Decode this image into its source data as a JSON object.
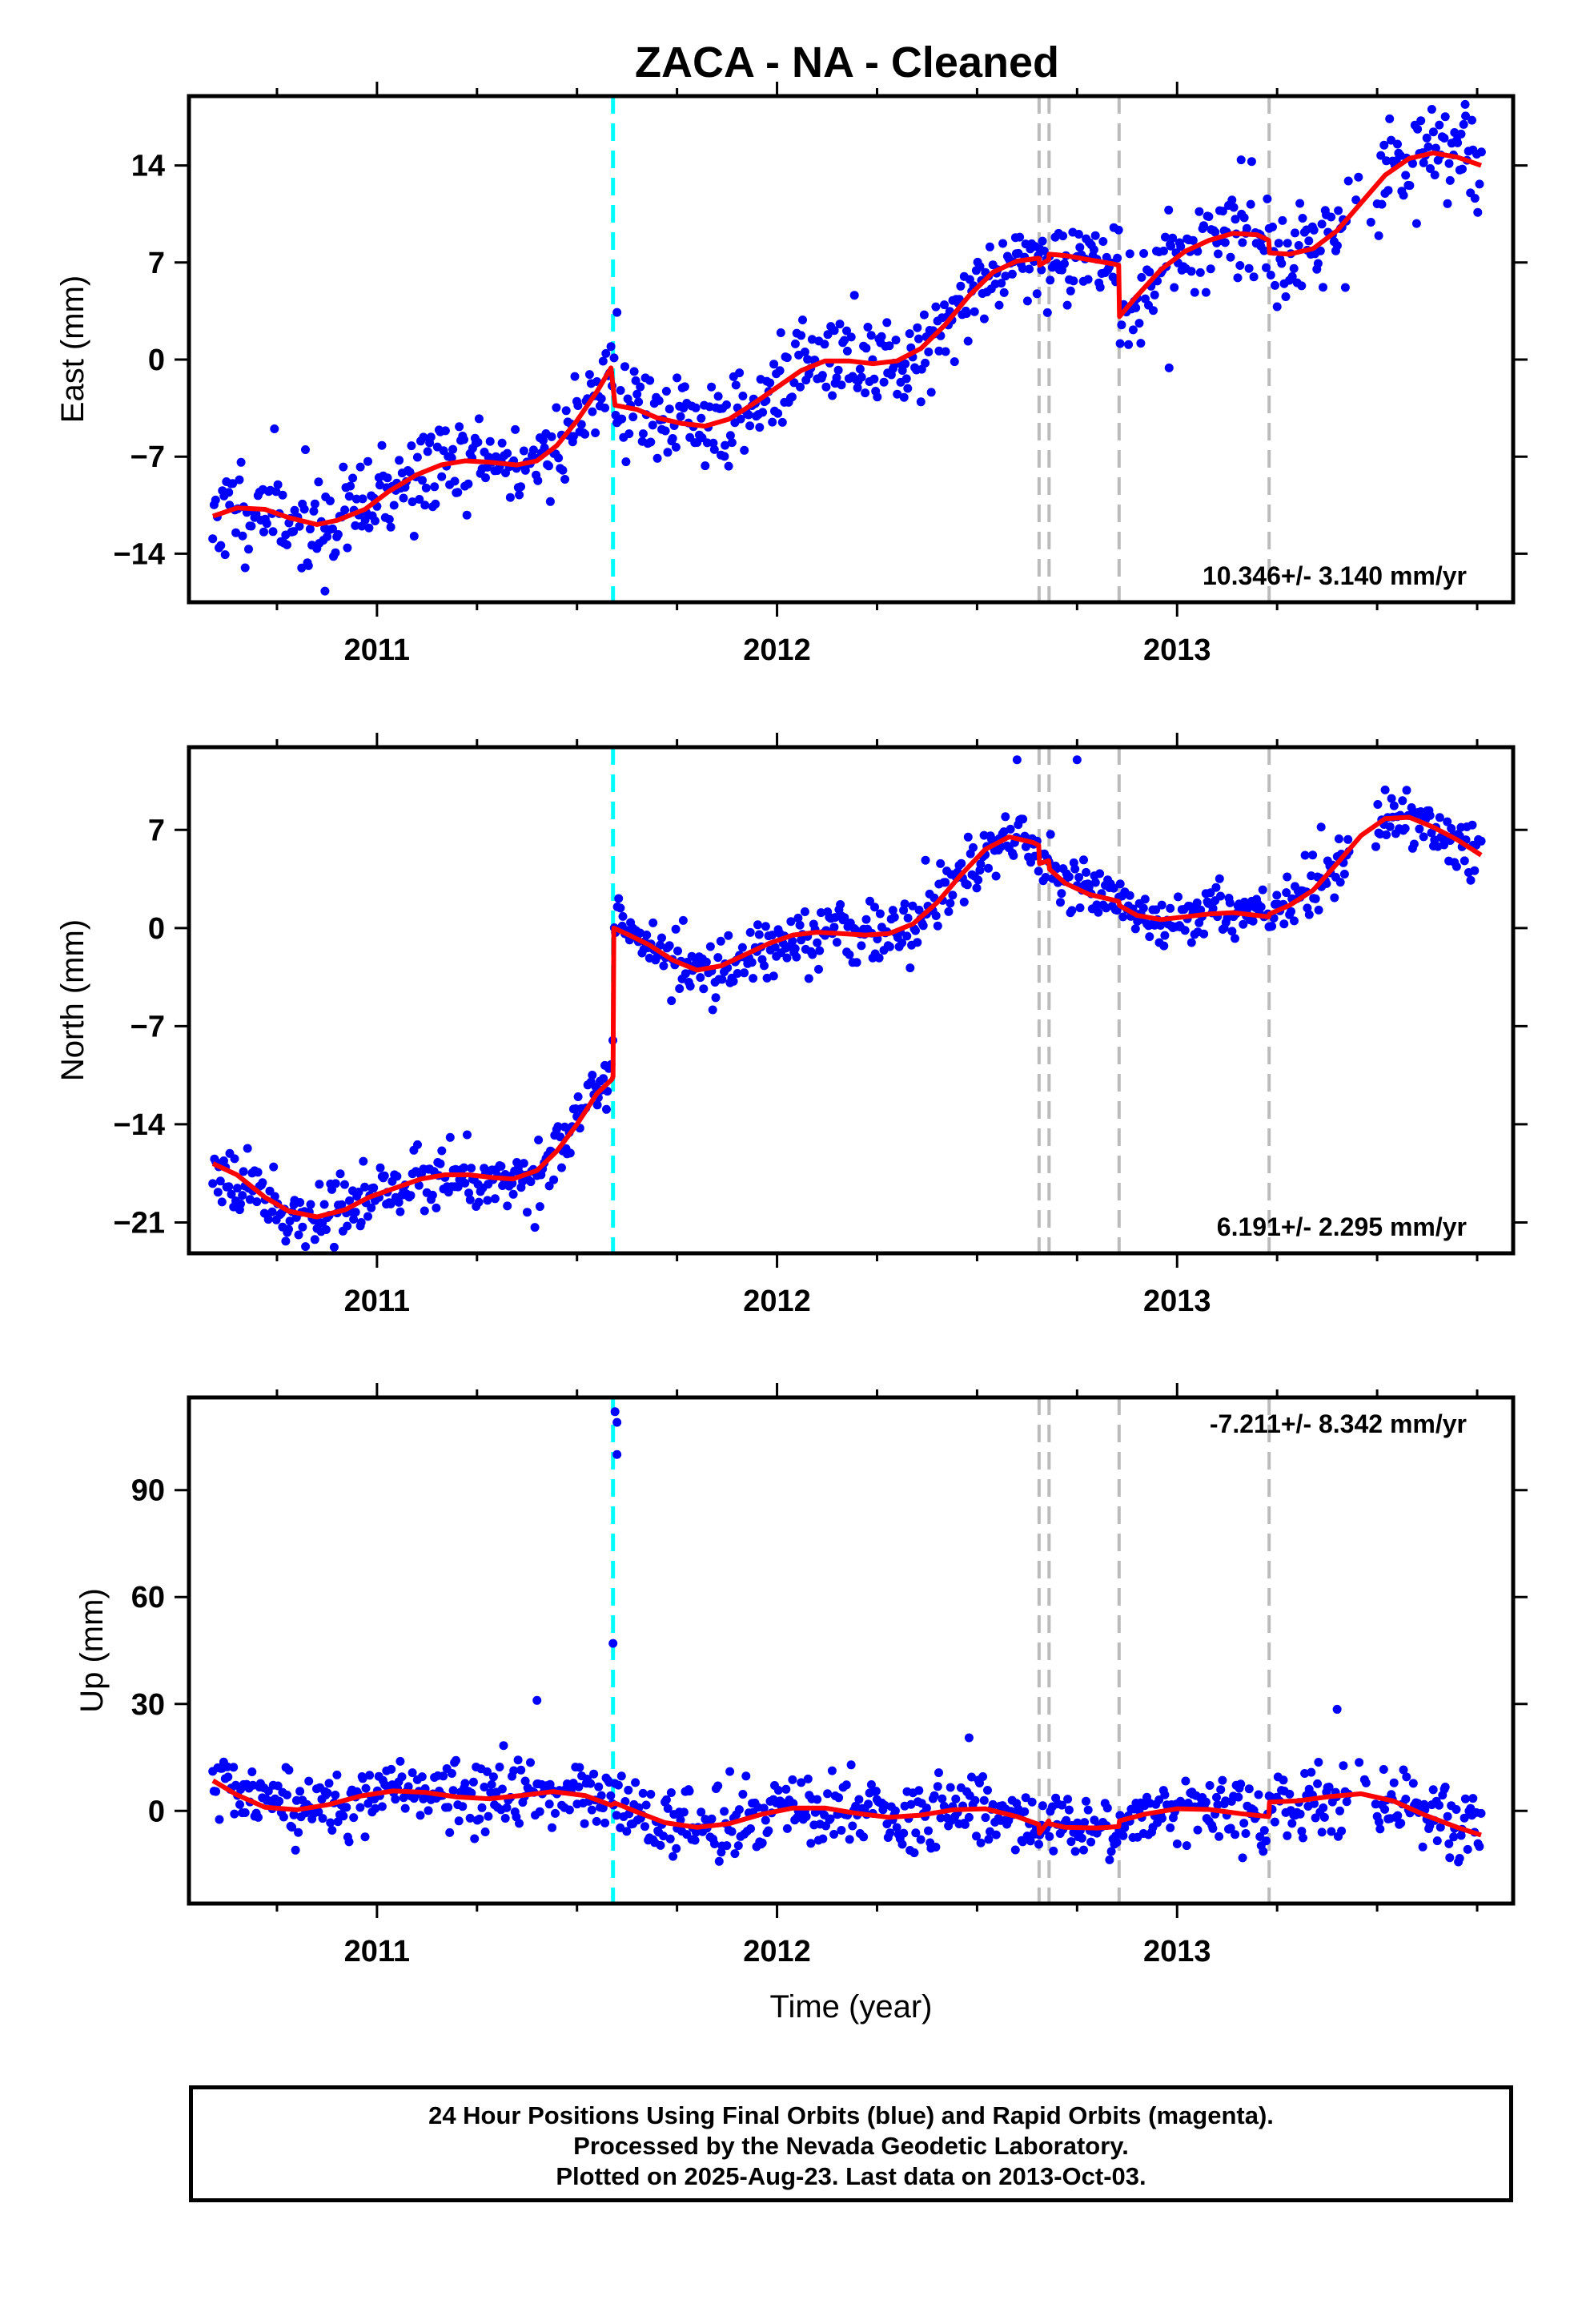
{
  "title": "ZACA  - NA - Cleaned",
  "footer": {
    "line1": "24 Hour Positions Using Final Orbits (blue) and Rapid Orbits (magenta).",
    "line2": "Processed by the Nevada Geodetic Laboratory.",
    "line3": "Plotted on 2025-Aug-23. Last data on 2013-Oct-03."
  },
  "colors": {
    "data": "#0000ff",
    "model": "#ff0000",
    "offset_equipment": "#00ffff",
    "offset_other": "#bbbbbb"
  },
  "chart_data": [
    {
      "type": "scatter",
      "component": "east",
      "ylabel": "East (mm)",
      "xlim": [
        2010.53,
        2013.84
      ],
      "ylim": [
        -17.5,
        19
      ],
      "x_ticks": [
        2011,
        2012,
        2013
      ],
      "y_ticks": [
        -14,
        -7,
        0,
        7,
        14
      ],
      "rate_label": "10.346+/- 3.140 mm/yr",
      "offsets": [
        2011.59,
        2012.655,
        2012.68,
        2012.855,
        2013.23
      ],
      "offset_colors": [
        "#00ffff",
        "#bbbbbb",
        "#bbbbbb",
        "#bbbbbb",
        "#bbbbbb"
      ],
      "model": [
        [
          2010.59,
          -11.3
        ],
        [
          2010.65,
          -10.7
        ],
        [
          2010.72,
          -10.8
        ],
        [
          2010.78,
          -11.4
        ],
        [
          2010.85,
          -11.9
        ],
        [
          2010.9,
          -11.6
        ],
        [
          2010.97,
          -10.8
        ],
        [
          2011.03,
          -9.5
        ],
        [
          2011.1,
          -8.3
        ],
        [
          2011.16,
          -7.6
        ],
        [
          2011.22,
          -7.3
        ],
        [
          2011.28,
          -7.4
        ],
        [
          2011.35,
          -7.6
        ],
        [
          2011.4,
          -7.3
        ],
        [
          2011.45,
          -6.2
        ],
        [
          2011.5,
          -4.4
        ],
        [
          2011.55,
          -2.3
        ],
        [
          2011.585,
          -0.6
        ],
        [
          2011.595,
          -3.3
        ],
        [
          2011.65,
          -3.6
        ],
        [
          2011.7,
          -4.2
        ],
        [
          2011.76,
          -4.6
        ],
        [
          2011.82,
          -4.8
        ],
        [
          2011.88,
          -4.3
        ],
        [
          2011.94,
          -3.2
        ],
        [
          2012.0,
          -2.0
        ],
        [
          2012.06,
          -0.8
        ],
        [
          2012.12,
          -0.1
        ],
        [
          2012.18,
          -0.1
        ],
        [
          2012.24,
          -0.3
        ],
        [
          2012.3,
          -0.1
        ],
        [
          2012.36,
          0.8
        ],
        [
          2012.42,
          2.5
        ],
        [
          2012.48,
          4.6
        ],
        [
          2012.54,
          6.3
        ],
        [
          2012.6,
          7.1
        ],
        [
          2012.65,
          7.3
        ],
        [
          2012.655,
          7.3
        ],
        [
          2012.656,
          6.8
        ],
        [
          2012.679,
          7.2
        ],
        [
          2012.68,
          7.6
        ],
        [
          2012.72,
          7.5
        ],
        [
          2012.78,
          7.2
        ],
        [
          2012.84,
          6.9
        ],
        [
          2012.854,
          6.8
        ],
        [
          2012.856,
          3.1
        ],
        [
          2012.9,
          4.6
        ],
        [
          2012.96,
          6.5
        ],
        [
          2013.02,
          7.8
        ],
        [
          2013.08,
          8.6
        ],
        [
          2013.14,
          9.1
        ],
        [
          2013.2,
          9.0
        ],
        [
          2013.229,
          8.6
        ],
        [
          2013.231,
          7.7
        ],
        [
          2013.28,
          7.6
        ],
        [
          2013.34,
          8.0
        ],
        [
          2013.4,
          9.3
        ],
        [
          2013.46,
          11.3
        ],
        [
          2013.52,
          13.3
        ],
        [
          2013.58,
          14.5
        ],
        [
          2013.64,
          14.9
        ],
        [
          2013.7,
          14.6
        ],
        [
          2013.76,
          14.0
        ]
      ],
      "n_points": 820,
      "seed": 11,
      "noise_mm": 1.7,
      "outliers": [
        [
          2011.6,
          3.4
        ],
        [
          2010.87,
          -16.7
        ],
        [
          2012.98,
          -0.6
        ],
        [
          2013.16,
          14.4
        ],
        [
          2013.72,
          18.4
        ]
      ]
    },
    {
      "type": "scatter",
      "component": "north",
      "ylabel": "North (mm)",
      "xlim": [
        2010.53,
        2013.84
      ],
      "ylim": [
        -23.2,
        12.9
      ],
      "x_ticks": [
        2011,
        2012,
        2013
      ],
      "y_ticks": [
        -21,
        -14,
        -7,
        0,
        7
      ],
      "rate_label": "6.191+/- 2.295 mm/yr",
      "offsets": [
        2011.59,
        2012.655,
        2012.68,
        2012.855,
        2013.23
      ],
      "offset_colors": [
        "#00ffff",
        "#bbbbbb",
        "#bbbbbb",
        "#bbbbbb",
        "#bbbbbb"
      ],
      "model": [
        [
          2010.59,
          -16.8
        ],
        [
          2010.65,
          -17.6
        ],
        [
          2010.72,
          -19.2
        ],
        [
          2010.78,
          -20.2
        ],
        [
          2010.85,
          -20.6
        ],
        [
          2010.92,
          -20.1
        ],
        [
          2010.98,
          -19.2
        ],
        [
          2011.05,
          -18.5
        ],
        [
          2011.11,
          -17.9
        ],
        [
          2011.17,
          -17.6
        ],
        [
          2011.23,
          -17.6
        ],
        [
          2011.29,
          -17.8
        ],
        [
          2011.34,
          -17.9
        ],
        [
          2011.4,
          -17.3
        ],
        [
          2011.45,
          -15.9
        ],
        [
          2011.5,
          -14.0
        ],
        [
          2011.55,
          -11.8
        ],
        [
          2011.587,
          -10.8
        ],
        [
          2011.59,
          -10.6
        ],
        [
          2011.592,
          0.0
        ],
        [
          2011.63,
          -0.5
        ],
        [
          2011.68,
          -1.2
        ],
        [
          2011.74,
          -2.3
        ],
        [
          2011.8,
          -3.0
        ],
        [
          2011.86,
          -2.7
        ],
        [
          2011.92,
          -1.9
        ],
        [
          2011.98,
          -1.1
        ],
        [
          2012.04,
          -0.5
        ],
        [
          2012.1,
          -0.3
        ],
        [
          2012.16,
          -0.4
        ],
        [
          2012.22,
          -0.5
        ],
        [
          2012.28,
          -0.4
        ],
        [
          2012.34,
          0.3
        ],
        [
          2012.4,
          1.8
        ],
        [
          2012.46,
          3.8
        ],
        [
          2012.52,
          5.6
        ],
        [
          2012.58,
          6.5
        ],
        [
          2012.64,
          6.1
        ],
        [
          2012.654,
          5.9
        ],
        [
          2012.656,
          4.6
        ],
        [
          2012.679,
          4.8
        ],
        [
          2012.681,
          4.2
        ],
        [
          2012.72,
          3.2
        ],
        [
          2012.78,
          2.4
        ],
        [
          2012.84,
          2.0
        ],
        [
          2012.854,
          1.9
        ],
        [
          2012.856,
          1.6
        ],
        [
          2012.9,
          0.9
        ],
        [
          2012.96,
          0.6
        ],
        [
          2013.02,
          0.8
        ],
        [
          2013.08,
          1.0
        ],
        [
          2013.14,
          1.1
        ],
        [
          2013.2,
          0.9
        ],
        [
          2013.229,
          0.8
        ],
        [
          2013.231,
          1.0
        ],
        [
          2013.28,
          1.6
        ],
        [
          2013.34,
          2.7
        ],
        [
          2013.4,
          4.6
        ],
        [
          2013.46,
          6.6
        ],
        [
          2013.52,
          7.8
        ],
        [
          2013.58,
          7.9
        ],
        [
          2013.64,
          7.2
        ],
        [
          2013.7,
          6.3
        ],
        [
          2013.76,
          5.2
        ]
      ],
      "n_points": 820,
      "seed": 23,
      "noise_mm": 1.1,
      "outliers": [
        [
          2012.6,
          12.0
        ],
        [
          2012.75,
          12.0
        ],
        [
          2013.05,
          1.8
        ],
        [
          2013.36,
          7.2
        ]
      ]
    },
    {
      "type": "scatter",
      "component": "up",
      "ylabel": "Up (mm)",
      "xlabel": "Time (year)",
      "xlim": [
        2010.53,
        2013.84
      ],
      "ylim": [
        -26,
        116
      ],
      "x_ticks": [
        2011,
        2012,
        2013
      ],
      "y_ticks": [
        0,
        30,
        60,
        90
      ],
      "rate_label": "-7.211+/- 8.342 mm/yr",
      "offsets": [
        2011.59,
        2012.655,
        2012.68,
        2012.855,
        2013.23
      ],
      "offset_colors": [
        "#00ffff",
        "#bbbbbb",
        "#bbbbbb",
        "#bbbbbb",
        "#bbbbbb"
      ],
      "model": [
        [
          2010.59,
          8.5
        ],
        [
          2010.65,
          4.5
        ],
        [
          2010.72,
          1.0
        ],
        [
          2010.8,
          0.3
        ],
        [
          2010.88,
          1.8
        ],
        [
          2010.96,
          4.2
        ],
        [
          2011.04,
          5.6
        ],
        [
          2011.12,
          5.2
        ],
        [
          2011.2,
          3.9
        ],
        [
          2011.28,
          3.4
        ],
        [
          2011.36,
          4.3
        ],
        [
          2011.44,
          5.4
        ],
        [
          2011.52,
          4.3
        ],
        [
          2011.585,
          1.6
        ],
        [
          2011.595,
          2.2
        ],
        [
          2011.65,
          -0.3
        ],
        [
          2011.72,
          -3.3
        ],
        [
          2011.8,
          -4.6
        ],
        [
          2011.88,
          -3.6
        ],
        [
          2011.96,
          -1.0
        ],
        [
          2012.04,
          0.8
        ],
        [
          2012.12,
          0.8
        ],
        [
          2012.2,
          -0.7
        ],
        [
          2012.28,
          -1.8
        ],
        [
          2012.36,
          -1.2
        ],
        [
          2012.44,
          0.3
        ],
        [
          2012.52,
          0.6
        ],
        [
          2012.6,
          -1.6
        ],
        [
          2012.654,
          -3.8
        ],
        [
          2012.656,
          -6.3
        ],
        [
          2012.679,
          -2.8
        ],
        [
          2012.681,
          -3.6
        ],
        [
          2012.72,
          -4.6
        ],
        [
          2012.8,
          -4.8
        ],
        [
          2012.854,
          -4.4
        ],
        [
          2012.856,
          -2.8
        ],
        [
          2012.92,
          -0.9
        ],
        [
          2013.0,
          0.6
        ],
        [
          2013.08,
          0.4
        ],
        [
          2013.16,
          -0.8
        ],
        [
          2013.229,
          -1.6
        ],
        [
          2013.231,
          2.5
        ],
        [
          2013.3,
          2.8
        ],
        [
          2013.38,
          4.0
        ],
        [
          2013.46,
          4.8
        ],
        [
          2013.54,
          2.8
        ],
        [
          2013.62,
          -1.2
        ],
        [
          2013.7,
          -4.6
        ],
        [
          2013.76,
          -6.8
        ]
      ],
      "n_points": 820,
      "seed": 37,
      "noise_mm": 4.8,
      "outliers": [
        [
          2011.595,
          112
        ],
        [
          2011.6,
          109
        ],
        [
          2011.6,
          100
        ],
        [
          2011.59,
          47
        ],
        [
          2011.4,
          31
        ],
        [
          2012.48,
          20.5
        ],
        [
          2013.4,
          28.5
        ]
      ]
    }
  ]
}
